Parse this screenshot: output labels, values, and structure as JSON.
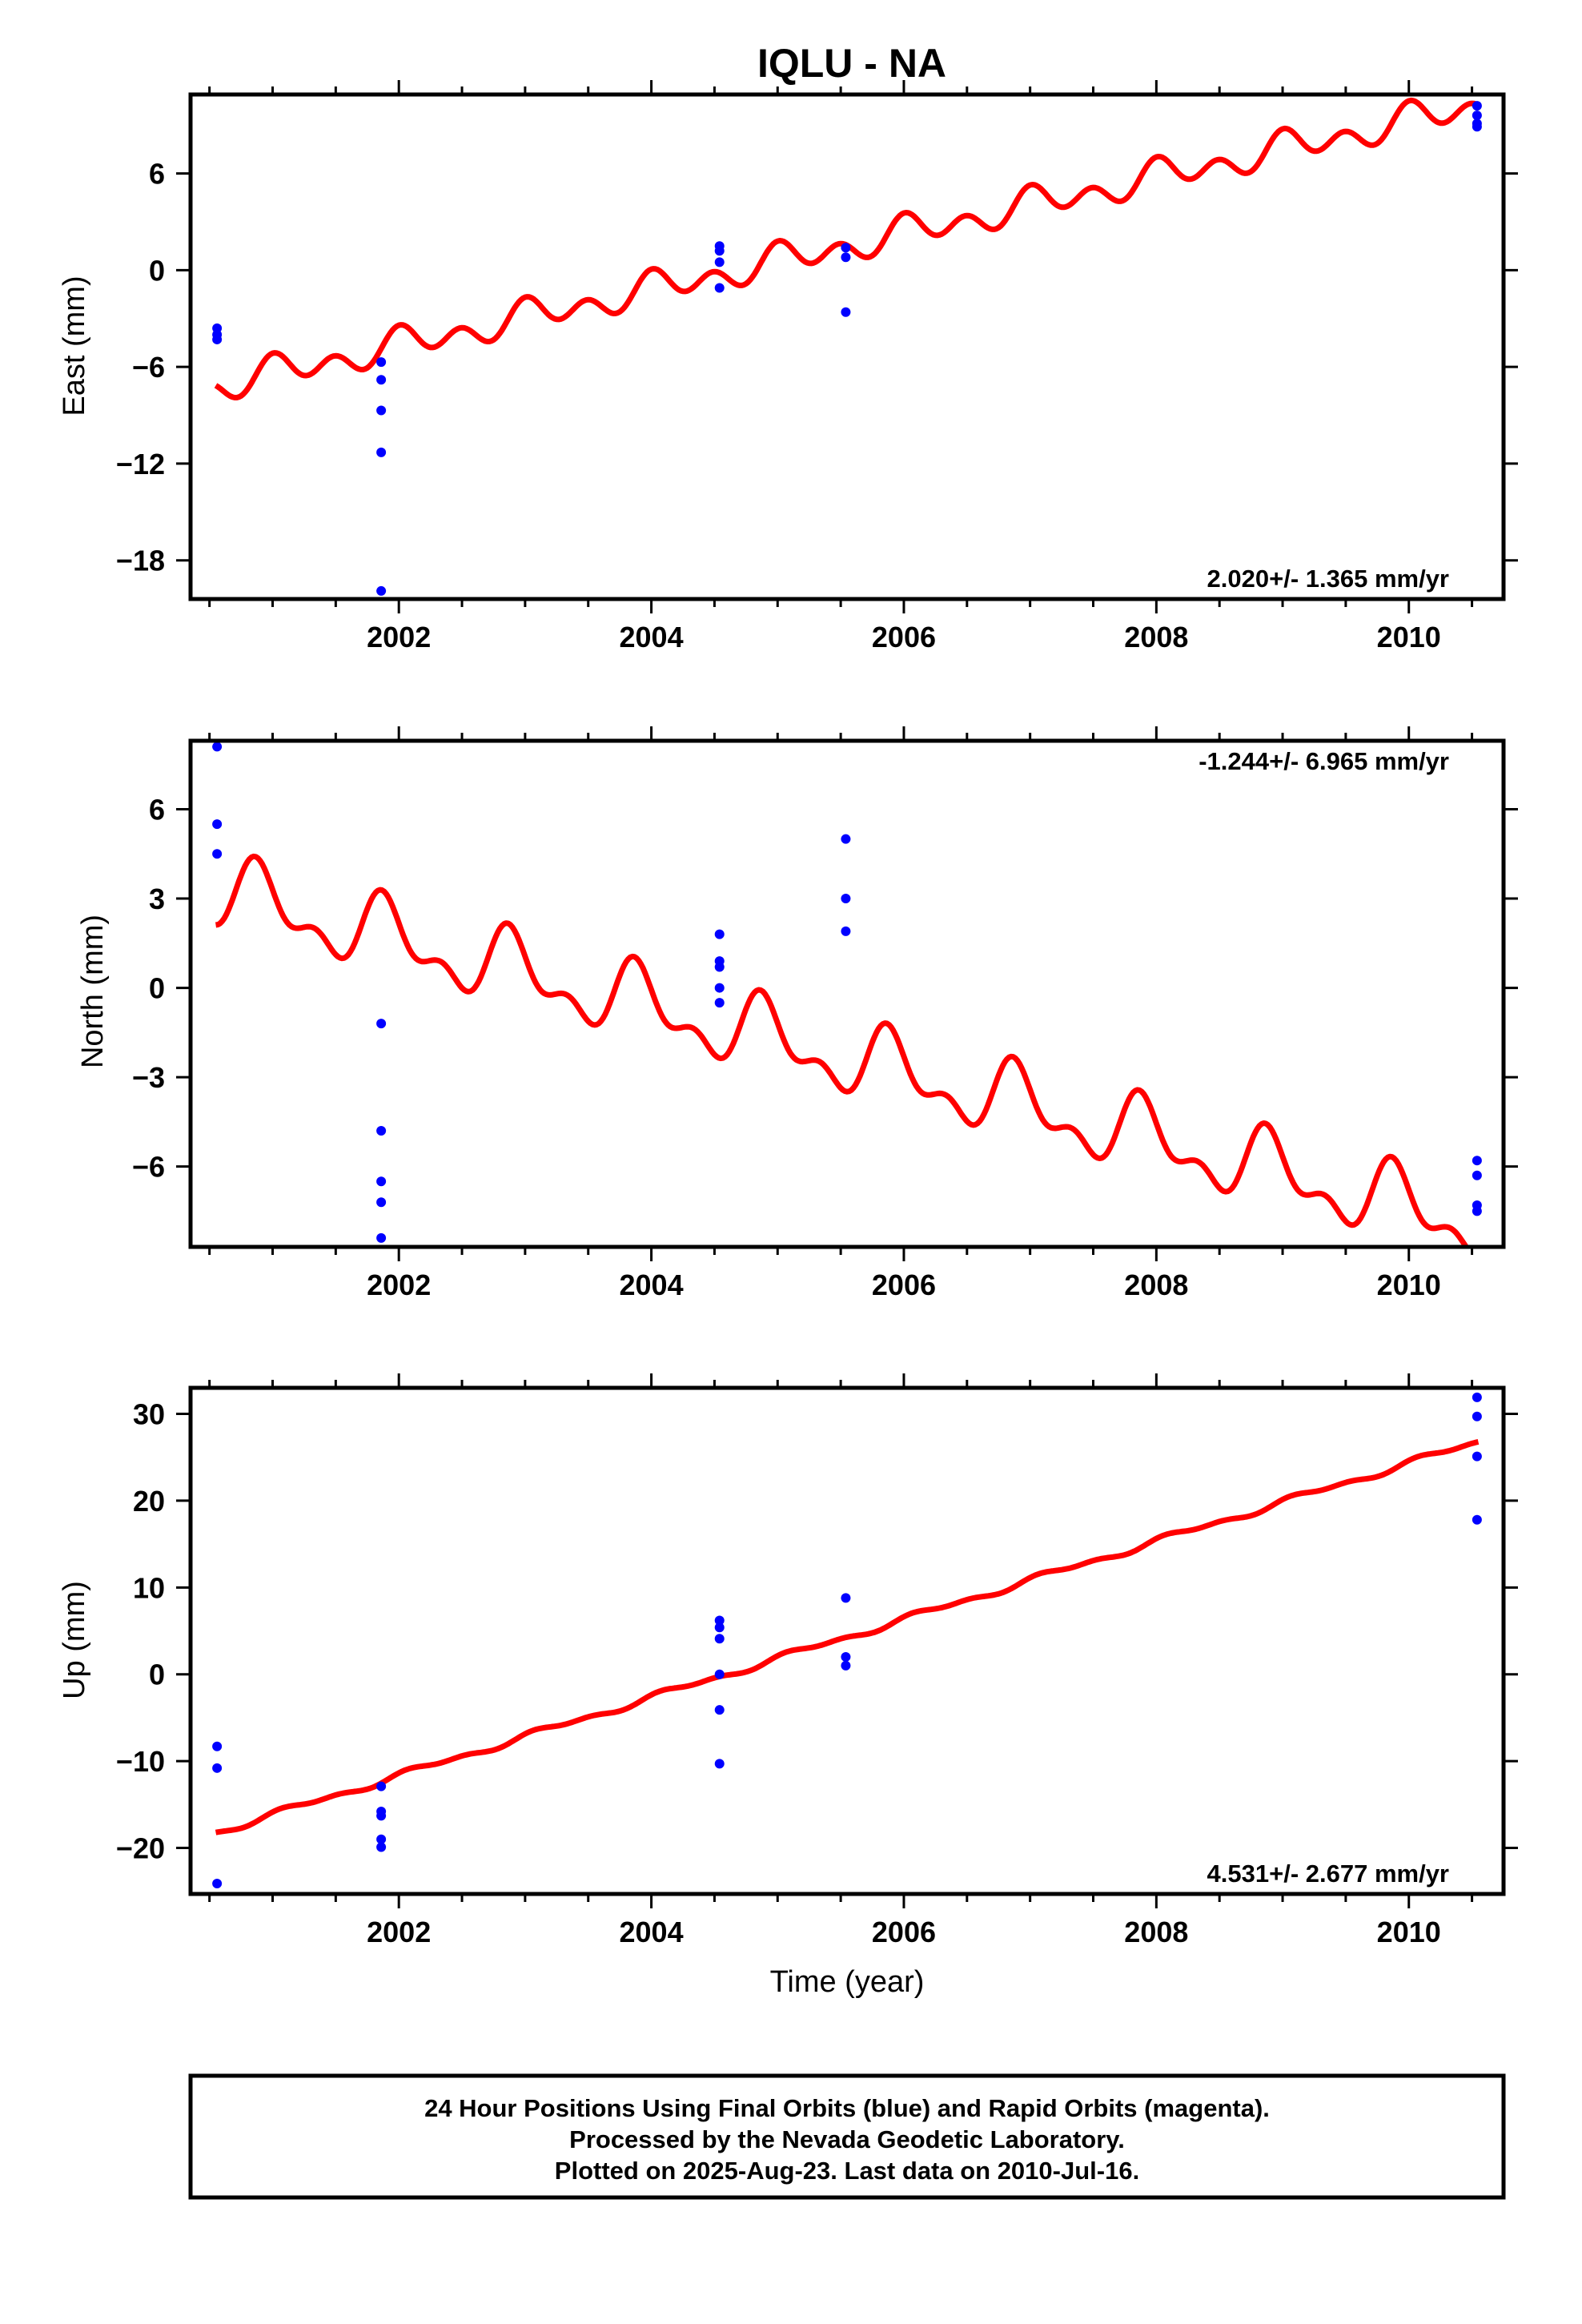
{
  "title": "IQLU - NA",
  "colors": {
    "final_orbits": "#0000ff",
    "model": "#ff0000",
    "frame": "#000000"
  },
  "footer": {
    "line1": "24 Hour Positions Using Final Orbits (blue) and Rapid Orbits (magenta).",
    "line2": "Processed by the Nevada Geodetic Laboratory.",
    "line3": "Plotted on 2025-Aug-23. Last data on 2010-Jul-16."
  },
  "chart_data": [
    {
      "type": "scatter",
      "name": "east",
      "ylabel": "East (mm)",
      "xlabel": "",
      "xlim": [
        2000.35,
        2010.75
      ],
      "ylim": [
        -20.4,
        10.9
      ],
      "xticks": [
        2002,
        2004,
        2006,
        2008,
        2010
      ],
      "yticks": [
        -18,
        -12,
        -6,
        0,
        6
      ],
      "grid": false,
      "rate_text": "2.020+/- 1.365 mm/yr",
      "rate_position": "bottom-right",
      "points": [
        [
          2000.56,
          -3.6
        ],
        [
          2000.56,
          -4.0
        ],
        [
          2000.56,
          -4.3
        ],
        [
          2001.86,
          -5.7
        ],
        [
          2001.86,
          -6.8
        ],
        [
          2001.86,
          -8.7
        ],
        [
          2001.86,
          -11.3
        ],
        [
          2001.86,
          -19.9
        ],
        [
          2004.54,
          1.5
        ],
        [
          2004.54,
          1.2
        ],
        [
          2004.54,
          0.5
        ],
        [
          2004.54,
          -1.1
        ],
        [
          2005.54,
          1.4
        ],
        [
          2005.54,
          0.8
        ],
        [
          2005.54,
          -2.6
        ],
        [
          2010.54,
          10.2
        ],
        [
          2010.54,
          9.6
        ],
        [
          2010.54,
          9.1
        ],
        [
          2010.54,
          8.9
        ]
      ],
      "model": {
        "t0": 2000.55,
        "t1": 2010.55,
        "offset": -7.2,
        "rate": 1.74,
        "annual_amp": 0.55,
        "annual_phase": 1.2,
        "semi_amp": 0.75,
        "semi_phase": 1.6
      }
    },
    {
      "type": "scatter",
      "name": "north",
      "ylabel": "North (mm)",
      "xlabel": "",
      "xlim": [
        2000.35,
        2010.75
      ],
      "ylim": [
        -8.7,
        8.3
      ],
      "xticks": [
        2002,
        2004,
        2006,
        2008,
        2010
      ],
      "yticks": [
        -6,
        -3,
        0,
        3,
        6
      ],
      "grid": false,
      "rate_text": "-1.244+/- 6.965 mm/yr",
      "rate_position": "top-right",
      "points": [
        [
          2000.56,
          8.1
        ],
        [
          2000.56,
          5.5
        ],
        [
          2000.56,
          4.5
        ],
        [
          2001.86,
          -1.2
        ],
        [
          2001.86,
          -4.8
        ],
        [
          2001.86,
          -6.5
        ],
        [
          2001.86,
          -7.2
        ],
        [
          2001.86,
          -8.4
        ],
        [
          2004.54,
          1.8
        ],
        [
          2004.54,
          0.9
        ],
        [
          2004.54,
          0.7
        ],
        [
          2004.54,
          0.0
        ],
        [
          2004.54,
          -0.5
        ],
        [
          2005.54,
          5.0
        ],
        [
          2005.54,
          3.0
        ],
        [
          2005.54,
          1.9
        ],
        [
          2010.54,
          -5.8
        ],
        [
          2010.54,
          -6.3
        ],
        [
          2010.54,
          -7.3
        ],
        [
          2010.54,
          -7.5
        ]
      ],
      "model": {
        "t0": 2000.55,
        "t1": 2010.55,
        "offset": 3.2,
        "rate": -1.12,
        "annual_amp": 1.0,
        "annual_phase": 2.2,
        "semi_amp": 0.6,
        "semi_phase": 3.5
      }
    },
    {
      "type": "scatter",
      "name": "up",
      "ylabel": "Up (mm)",
      "xlabel": "Time (year)",
      "xlim": [
        2000.35,
        2010.75
      ],
      "ylim": [
        -25.3,
        33.0
      ],
      "xticks": [
        2002,
        2004,
        2006,
        2008,
        2010
      ],
      "yticks": [
        -20,
        -10,
        0,
        10,
        20,
        30
      ],
      "grid": false,
      "rate_text": "4.531+/- 2.677 mm/yr",
      "rate_position": "bottom-right",
      "points": [
        [
          2000.56,
          -8.3
        ],
        [
          2000.56,
          -10.8
        ],
        [
          2000.56,
          -24.1
        ],
        [
          2001.86,
          -12.9
        ],
        [
          2001.86,
          -15.8
        ],
        [
          2001.86,
          -16.3
        ],
        [
          2001.86,
          -19.0
        ],
        [
          2001.86,
          -19.9
        ],
        [
          2004.54,
          6.2
        ],
        [
          2004.54,
          5.4
        ],
        [
          2004.54,
          4.1
        ],
        [
          2004.54,
          0.0
        ],
        [
          2004.54,
          -4.1
        ],
        [
          2004.54,
          -10.3
        ],
        [
          2005.54,
          8.8
        ],
        [
          2005.54,
          2.0
        ],
        [
          2005.54,
          1.0
        ],
        [
          2010.54,
          31.9
        ],
        [
          2010.54,
          29.7
        ],
        [
          2010.54,
          25.1
        ],
        [
          2010.54,
          17.8
        ]
      ],
      "model": {
        "t0": 2000.55,
        "t1": 2010.55,
        "offset": -18.2,
        "rate": 4.5,
        "annual_amp": 0.3,
        "annual_phase": 0.5,
        "semi_amp": 0.2,
        "semi_phase": 1.0
      }
    }
  ]
}
